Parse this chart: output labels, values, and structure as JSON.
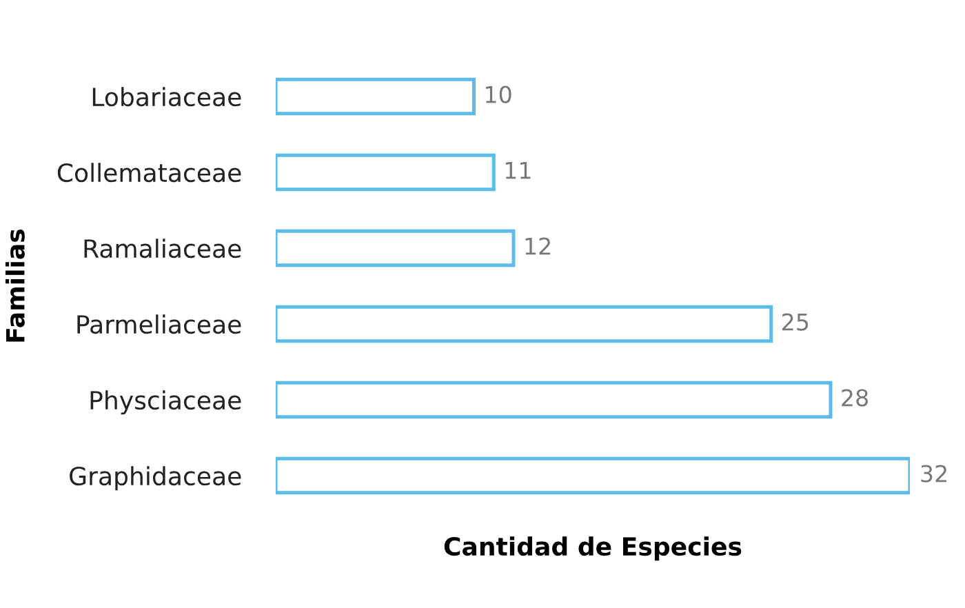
{
  "chart_data": {
    "type": "bar",
    "orientation": "horizontal",
    "xlabel": "Cantidad de Especies",
    "ylabel": "Familias",
    "categories": [
      "Lobariaceae",
      "Collemataceae",
      "Ramaliaceae",
      "Parmeliaceae",
      "Physciaceae",
      "Graphidaceae"
    ],
    "values": [
      10,
      11,
      12,
      25,
      28,
      32
    ],
    "color": "#5bbcea",
    "data_labels": true,
    "tick_labels": "y",
    "grid": false,
    "legend": false
  }
}
